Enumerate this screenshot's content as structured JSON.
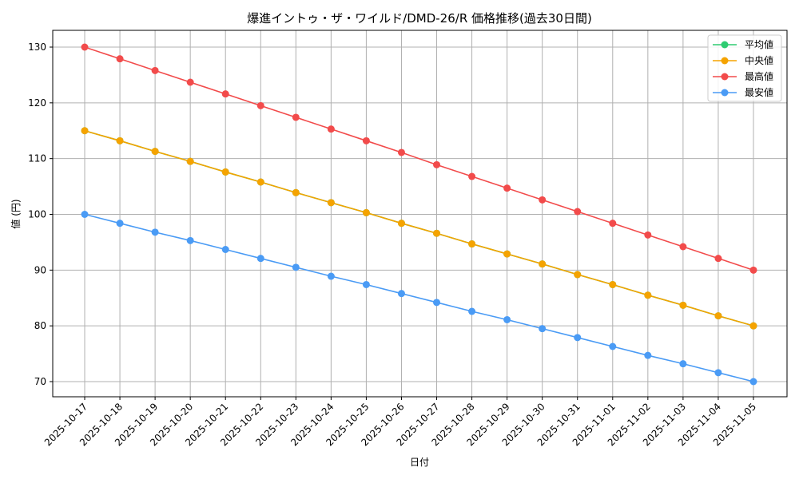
{
  "chart_data": {
    "type": "line",
    "title": "爆進イントゥ・ザ・ワイルド/DMD-26/R 価格推移(過去30日間)",
    "xlabel": "日付",
    "ylabel": "値 (円)",
    "ylim": [
      67,
      133
    ],
    "yticks": [
      70,
      80,
      90,
      100,
      110,
      120,
      130
    ],
    "grid": true,
    "legend_position": "upper right",
    "categories": [
      "2025-10-17",
      "2025-10-18",
      "2025-10-19",
      "2025-10-20",
      "2025-10-21",
      "2025-10-22",
      "2025-10-23",
      "2025-10-24",
      "2025-10-25",
      "2025-10-26",
      "2025-10-27",
      "2025-10-28",
      "2025-10-29",
      "2025-10-30",
      "2025-10-31",
      "2025-11-01",
      "2025-11-02",
      "2025-11-03",
      "2025-11-04",
      "2025-11-05"
    ],
    "series": [
      {
        "name": "平均値",
        "color": "#2ecc71",
        "values": [
          115.0,
          113.2,
          111.3,
          109.5,
          107.6,
          105.8,
          103.9,
          102.1,
          100.3,
          98.4,
          96.6,
          94.7,
          92.9,
          91.1,
          89.2,
          87.4,
          85.5,
          83.7,
          81.8,
          80.0
        ]
      },
      {
        "name": "中央値",
        "color": "#f5a300",
        "values": [
          115.0,
          113.2,
          111.3,
          109.5,
          107.6,
          105.8,
          103.9,
          102.1,
          100.3,
          98.4,
          96.6,
          94.7,
          92.9,
          91.1,
          89.2,
          87.4,
          85.5,
          83.7,
          81.8,
          80.0
        ]
      },
      {
        "name": "最高値",
        "color": "#f24b4b",
        "values": [
          130.0,
          127.9,
          125.8,
          123.7,
          121.6,
          119.5,
          117.4,
          115.3,
          113.2,
          111.1,
          108.9,
          106.8,
          104.7,
          102.6,
          100.5,
          98.4,
          96.3,
          94.2,
          92.1,
          90.0
        ]
      },
      {
        "name": "最安値",
        "color": "#4a9bf5",
        "values": [
          100.0,
          98.4,
          96.8,
          95.3,
          93.7,
          92.1,
          90.5,
          88.9,
          87.4,
          85.8,
          84.2,
          82.6,
          81.1,
          79.5,
          77.9,
          76.3,
          74.7,
          73.2,
          71.6,
          70.0
        ]
      }
    ]
  }
}
